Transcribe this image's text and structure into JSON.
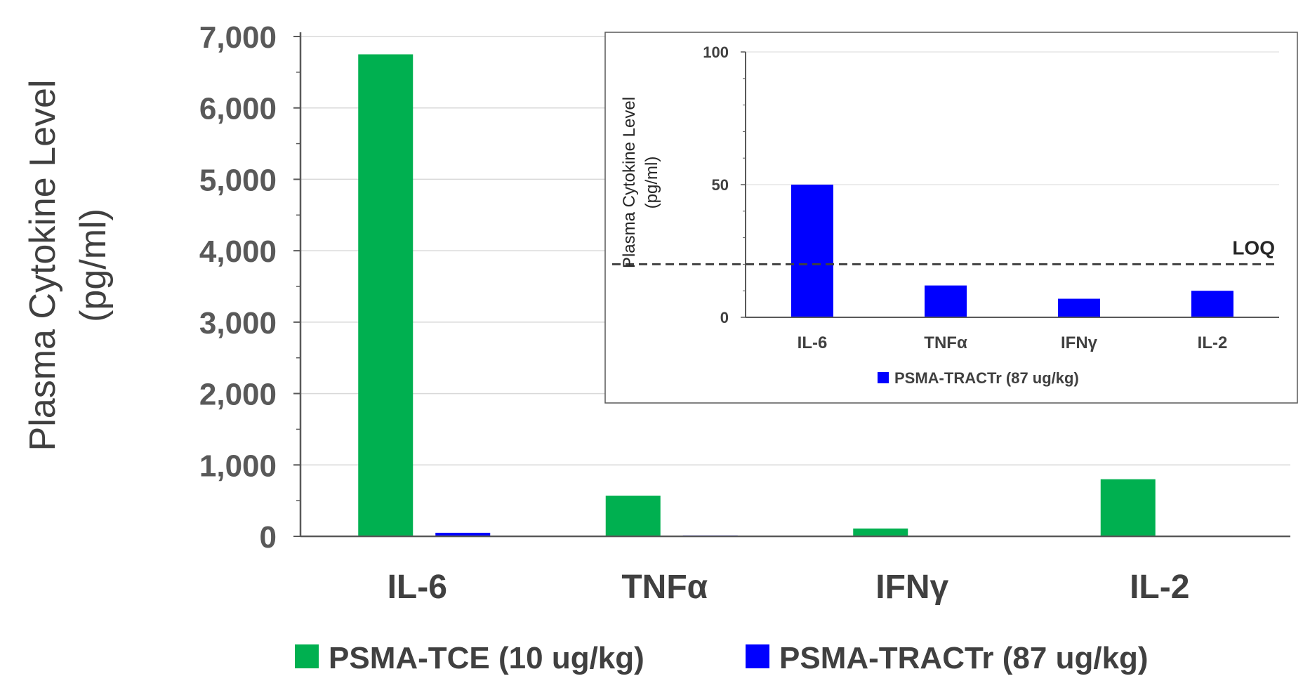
{
  "chart_data": [
    {
      "type": "bar",
      "title": "",
      "ylabel_lines": [
        "Plasma Cytokine Level",
        "(pg/ml)"
      ],
      "xlabel": "",
      "categories": [
        "IL-6",
        "TNFα",
        "IFNγ",
        "IL-2"
      ],
      "ylim": [
        0,
        7000
      ],
      "yticks": [
        0,
        1000,
        2000,
        3000,
        4000,
        5000,
        6000,
        7000
      ],
      "ytick_labels": [
        "0",
        "1,000",
        "2,000",
        "3,000",
        "4,000",
        "5,000",
        "6,000",
        "7,000"
      ],
      "grid": true,
      "legend_position": "bottom",
      "series": [
        {
          "name": "PSMA-TCE (10 ug/kg)",
          "color": "#00b050",
          "values": [
            6750,
            570,
            110,
            800
          ]
        },
        {
          "name": "PSMA-TRACTr (87 ug/kg)",
          "color": "#0000ff",
          "values": [
            50,
            12,
            7,
            10
          ]
        }
      ]
    },
    {
      "type": "bar",
      "title": "",
      "ylabel_lines": [
        "Plasma Cytokine Level",
        "(pg/ml)"
      ],
      "xlabel": "",
      "categories": [
        "IL-6",
        "TNFα",
        "IFNγ",
        "IL-2"
      ],
      "ylim": [
        0,
        100
      ],
      "yticks": [
        0,
        50,
        100
      ],
      "ytick_labels": [
        "0",
        "50",
        "100"
      ],
      "grid": true,
      "legend_position": "bottom",
      "reference_line": {
        "label": "LOQ",
        "value": 20
      },
      "series": [
        {
          "name": "PSMA-TRACTr (87 ug/kg)",
          "color": "#0000ff",
          "values": [
            50,
            12,
            7,
            10
          ]
        }
      ]
    }
  ]
}
